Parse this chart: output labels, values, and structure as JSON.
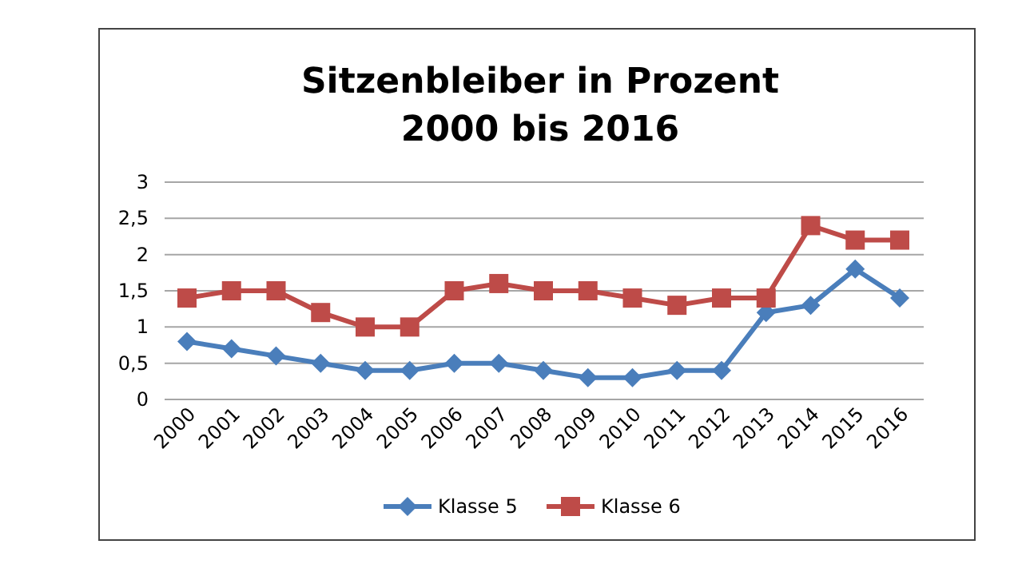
{
  "chart_data": {
    "type": "line",
    "title": "Sitzenbleiber in Prozent\n2000 bis 2016",
    "categories": [
      "2000",
      "2001",
      "2002",
      "2003",
      "2004",
      "2005",
      "2006",
      "2007",
      "2008",
      "2009",
      "2010",
      "2011",
      "2012",
      "2013",
      "2014",
      "2015",
      "2016"
    ],
    "series": [
      {
        "name": "Klasse 5",
        "color": "#4a7ebb",
        "marker": "diamond",
        "values": [
          0.8,
          0.7,
          0.6,
          0.5,
          0.4,
          0.4,
          0.5,
          0.5,
          0.4,
          0.3,
          0.3,
          0.4,
          0.4,
          1.2,
          1.3,
          1.8,
          1.4
        ]
      },
      {
        "name": "Klasse 6",
        "color": "#be4b48",
        "marker": "square",
        "values": [
          1.4,
          1.5,
          1.5,
          1.2,
          1.0,
          1.0,
          1.5,
          1.6,
          1.5,
          1.5,
          1.4,
          1.3,
          1.4,
          1.4,
          2.4,
          2.2,
          2.2
        ]
      }
    ],
    "ylim": [
      0,
      3
    ],
    "yticks": [
      {
        "value": 0,
        "label": "0"
      },
      {
        "value": 0.5,
        "label": "0,5"
      },
      {
        "value": 1,
        "label": "1"
      },
      {
        "value": 1.5,
        "label": "1,5"
      },
      {
        "value": 2,
        "label": "2"
      },
      {
        "value": 2.5,
        "label": "2,5"
      },
      {
        "value": 3,
        "label": "3"
      }
    ],
    "grid": "y",
    "legend": "bottom",
    "line_style": "solid"
  }
}
